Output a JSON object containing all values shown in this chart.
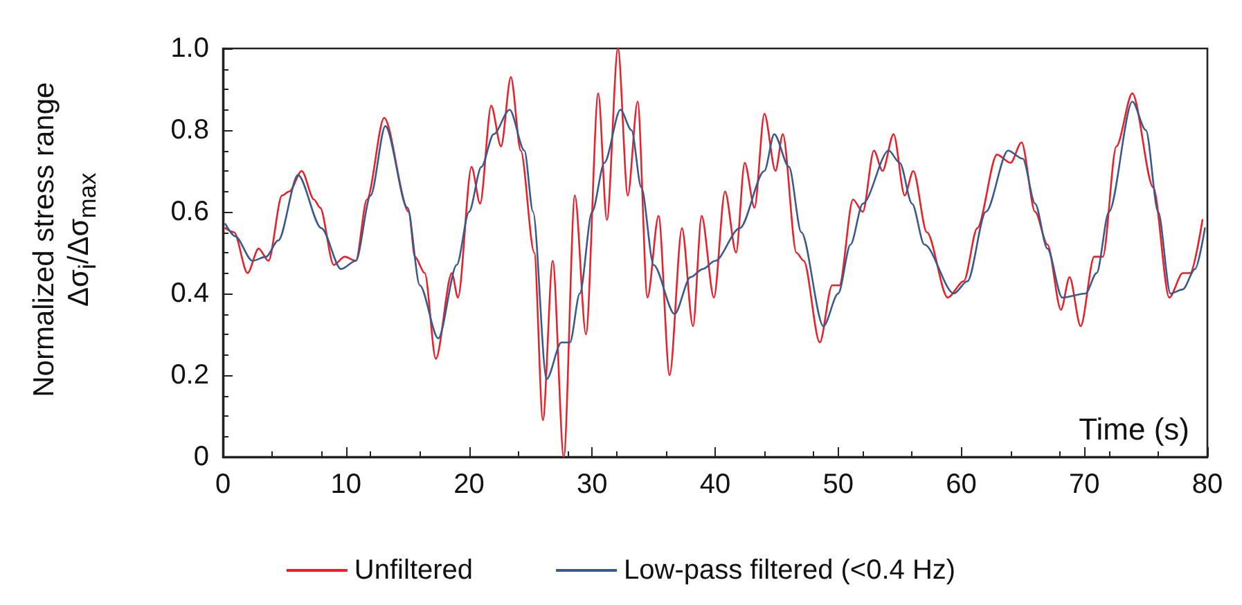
{
  "chart_data": {
    "type": "line",
    "xlabel": "Time (s)",
    "ylabel": "Normalized stress range\nΔσ$_{i}$/Δσ$_{max}$",
    "xlim": [
      0,
      80
    ],
    "xticks": [
      0,
      10,
      20,
      30,
      40,
      50,
      60,
      70,
      80
    ],
    "ylim": [
      0,
      1
    ],
    "yticks": [
      0,
      0.2,
      0.4,
      0.6,
      0.8,
      {
        "value": 1,
        "label": "1.0"
      }
    ],
    "grid": false,
    "legend": "bottom",
    "marker": "none",
    "line_style": "solid",
    "series": [
      {
        "name": "Unfiltered",
        "color": "#e8202a",
        "x": [
          0.2,
          0.9,
          2.0,
          2.9,
          3.7,
          4.8,
          5.4,
          6.4,
          7.4,
          7.9,
          9.0,
          9.9,
          10.8,
          11.7,
          13.1,
          15.1,
          15.6,
          16.4,
          17.3,
          18.6,
          19.1,
          20.2,
          20.9,
          21.8,
          22.6,
          23.4,
          24.2,
          25.3,
          26.0,
          26.8,
          27.7,
          28.6,
          29.5,
          30.5,
          31.2,
          32.1,
          32.9,
          33.7,
          34.5,
          35.4,
          36.3,
          37.3,
          38.2,
          38.9,
          39.9,
          40.8,
          41.7,
          42.4,
          43.2,
          44.0,
          44.9,
          45.5,
          46.6,
          47.2,
          48.5,
          49.5,
          50.1,
          51.2,
          52.0,
          52.9,
          53.6,
          54.5,
          55.4,
          56.1,
          57.2,
          58.9,
          60.2,
          61.3,
          62.9,
          64.0,
          64.9,
          66.0,
          67.0,
          68.1,
          68.8,
          69.7,
          70.8,
          71.5,
          72.6,
          73.9,
          75.6,
          76.9,
          78.0,
          78.6,
          79.6
        ],
        "values": [
          0.56,
          0.55,
          0.45,
          0.51,
          0.48,
          0.64,
          0.65,
          0.7,
          0.63,
          0.61,
          0.47,
          0.49,
          0.48,
          0.63,
          0.83,
          0.6,
          0.49,
          0.45,
          0.24,
          0.45,
          0.39,
          0.71,
          0.62,
          0.86,
          0.76,
          0.93,
          0.75,
          0.5,
          0.09,
          0.48,
          0.0,
          0.64,
          0.3,
          0.89,
          0.58,
          1.0,
          0.64,
          0.87,
          0.39,
          0.59,
          0.2,
          0.56,
          0.32,
          0.59,
          0.39,
          0.65,
          0.5,
          0.72,
          0.61,
          0.84,
          0.7,
          0.79,
          0.5,
          0.48,
          0.28,
          0.42,
          0.42,
          0.63,
          0.6,
          0.75,
          0.7,
          0.79,
          0.64,
          0.7,
          0.55,
          0.39,
          0.43,
          0.56,
          0.74,
          0.72,
          0.77,
          0.6,
          0.52,
          0.36,
          0.44,
          0.32,
          0.49,
          0.49,
          0.76,
          0.89,
          0.66,
          0.39,
          0.45,
          0.45,
          0.58
        ]
      },
      {
        "name": "Low-pass filtered (<0.4 Hz)",
        "color": "#3a5a8c",
        "x": [
          0.2,
          1,
          2.4,
          3.5,
          4.5,
          6.1,
          8,
          9.6,
          10.8,
          12,
          13.2,
          15,
          16,
          17.5,
          19,
          20,
          21,
          22,
          23.3,
          24.5,
          25.2,
          26.3,
          27.5,
          28.2,
          29,
          30,
          31,
          32.3,
          33.2,
          34,
          35,
          36.7,
          38,
          39,
          40,
          42,
          44,
          44.8,
          46,
          47,
          48.8,
          50,
          51,
          52,
          54.1,
          55,
          56,
          57,
          59.4,
          60.5,
          62,
          63.8,
          65,
          66,
          67,
          68.2,
          70.1,
          71,
          72,
          73.9,
          75,
          76,
          77,
          78,
          79,
          79.8
        ],
        "values": [
          0.57,
          0.54,
          0.48,
          0.49,
          0.53,
          0.69,
          0.56,
          0.46,
          0.48,
          0.64,
          0.81,
          0.61,
          0.42,
          0.29,
          0.47,
          0.6,
          0.71,
          0.79,
          0.85,
          0.75,
          0.6,
          0.19,
          0.28,
          0.28,
          0.4,
          0.6,
          0.72,
          0.85,
          0.8,
          0.66,
          0.47,
          0.35,
          0.44,
          0.46,
          0.48,
          0.56,
          0.7,
          0.79,
          0.71,
          0.55,
          0.32,
          0.4,
          0.52,
          0.62,
          0.75,
          0.72,
          0.62,
          0.52,
          0.4,
          0.43,
          0.6,
          0.75,
          0.73,
          0.62,
          0.51,
          0.39,
          0.4,
          0.45,
          0.6,
          0.87,
          0.8,
          0.6,
          0.4,
          0.41,
          0.46,
          0.56
        ]
      }
    ]
  }
}
